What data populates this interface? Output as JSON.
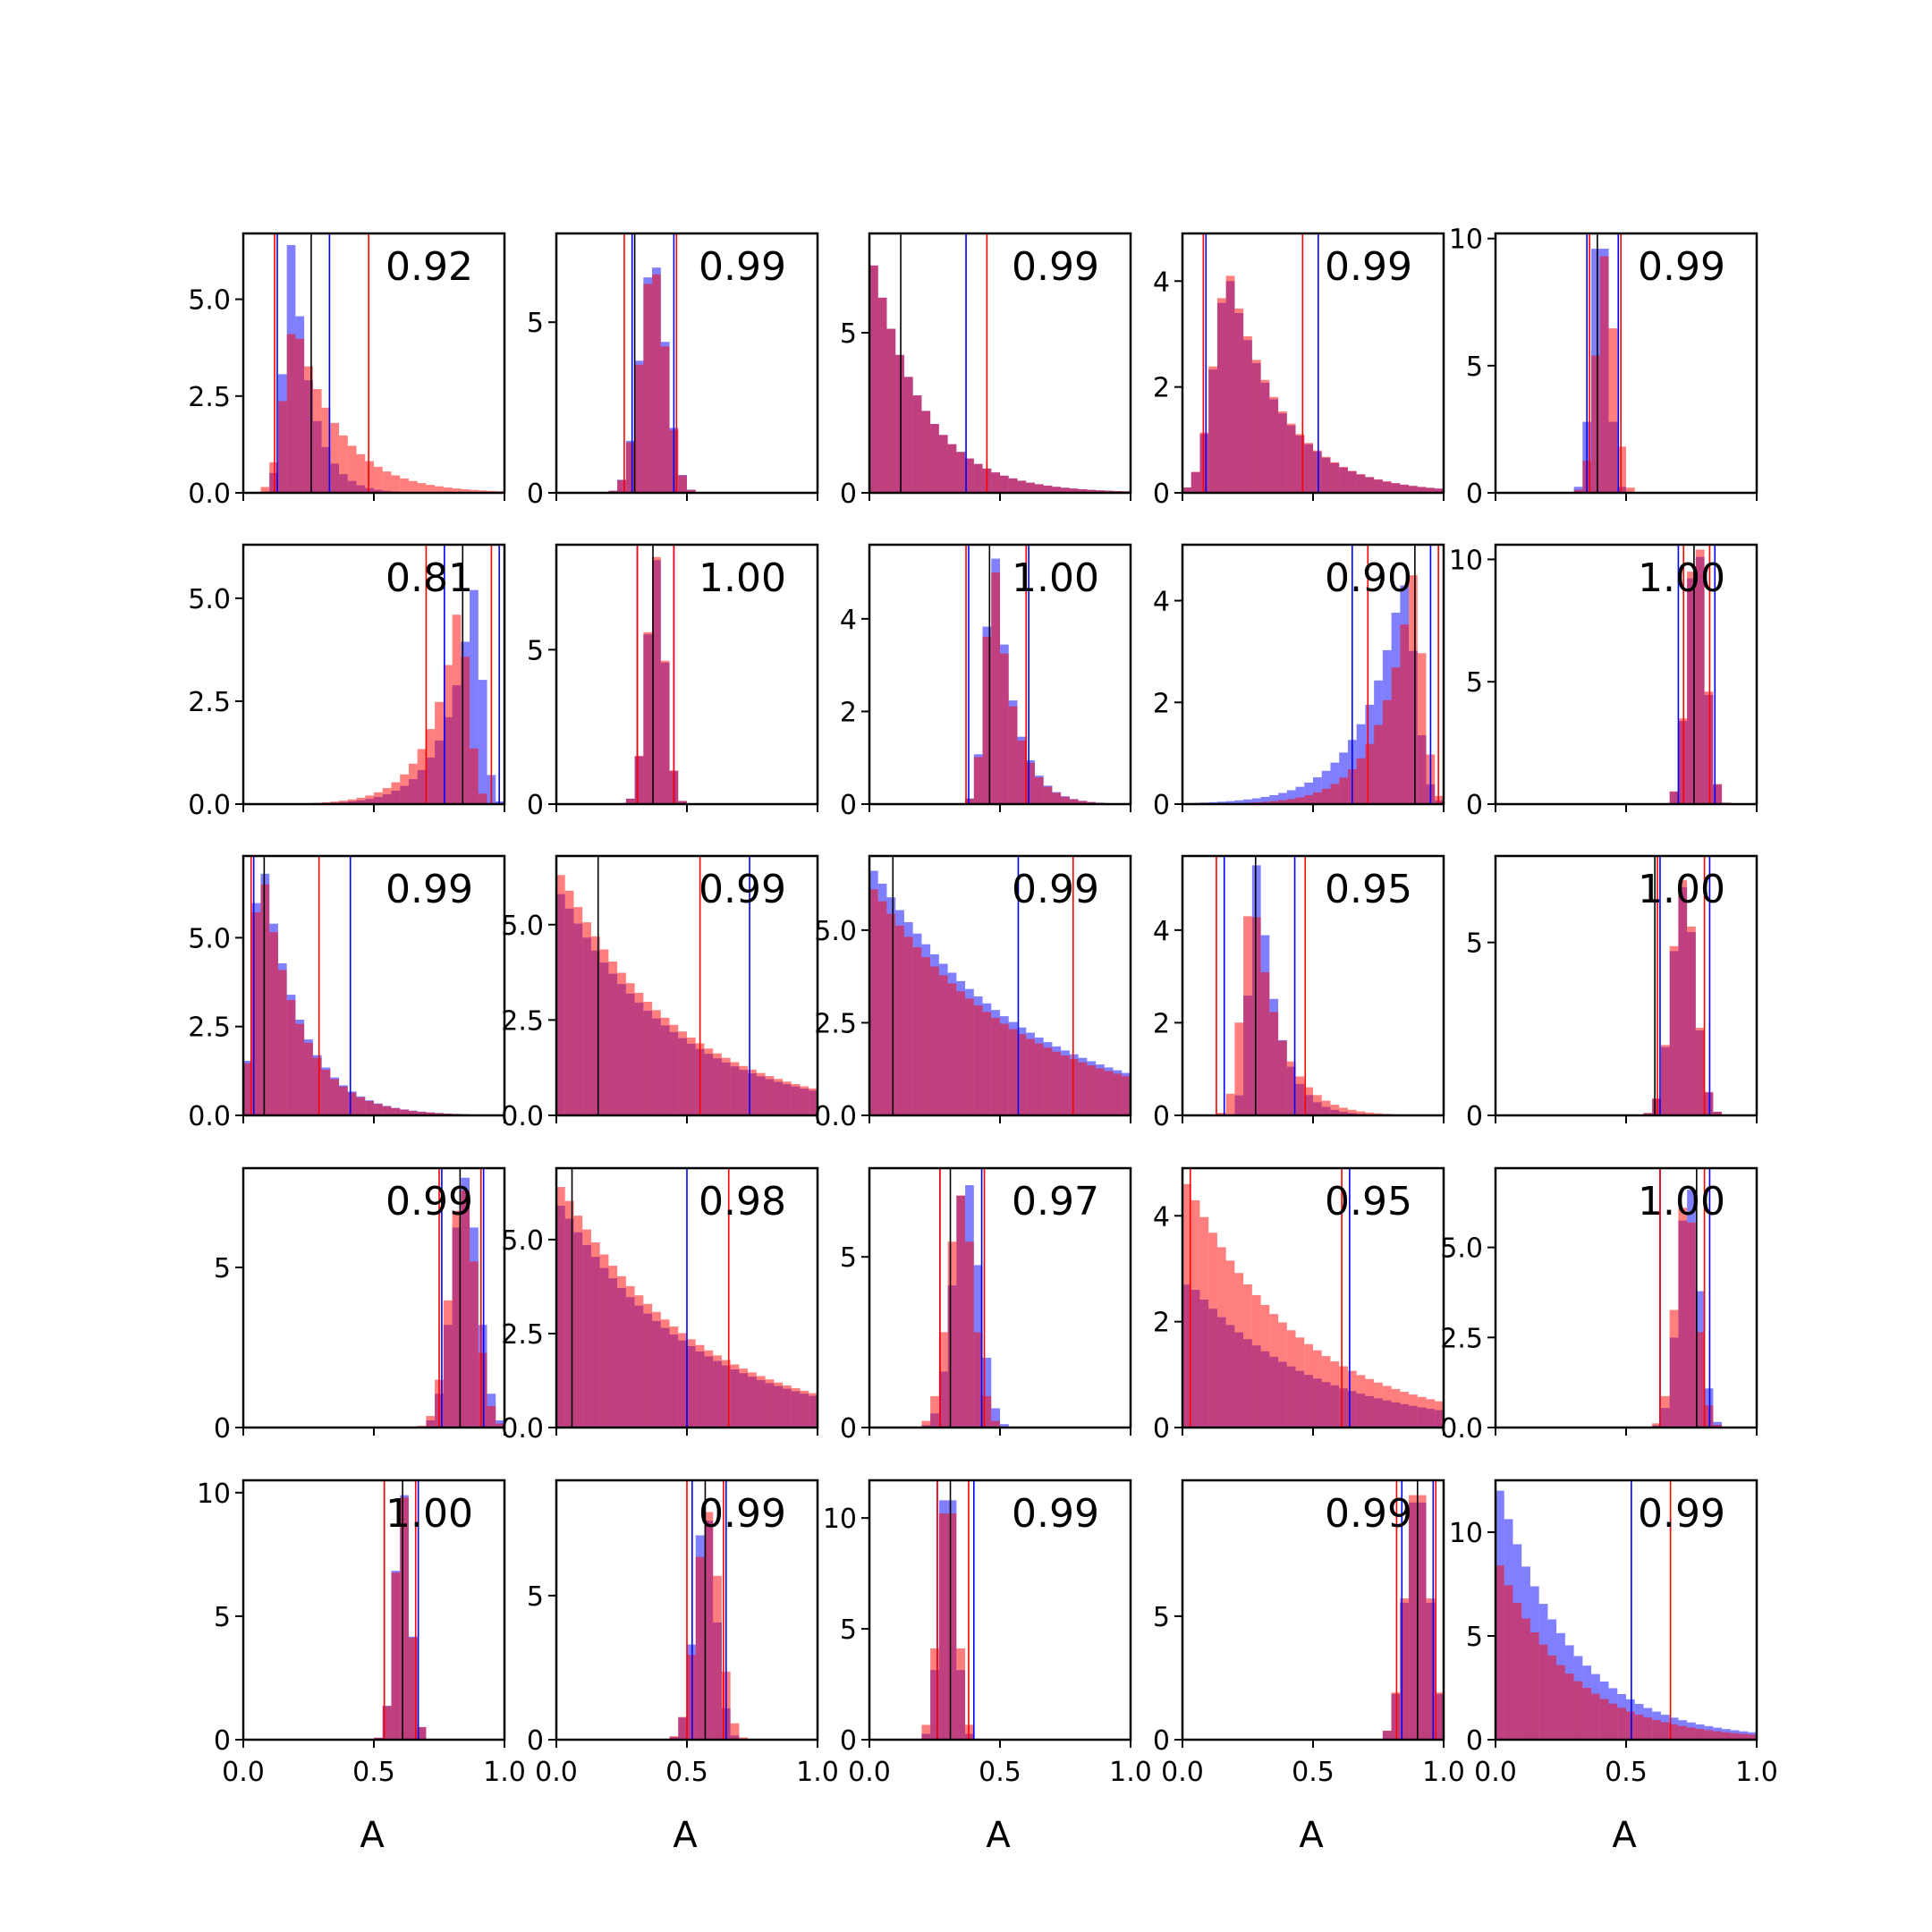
{
  "colors": {
    "series_a": "#0000ff",
    "series_b": "#ff0000",
    "median": "#000000",
    "frame": "#000000"
  },
  "chart_data": {
    "type": "grid-of-histograms",
    "rows": 5,
    "cols": 5,
    "xlim": [
      0,
      1
    ],
    "x_ticks": [
      "0.0",
      "0.5",
      "1.0"
    ],
    "xlabel": "A",
    "series": [
      {
        "color": "#0000ff",
        "alpha": 0.5
      },
      {
        "color": "#ff0000",
        "alpha": 0.5
      }
    ],
    "panels": [
      {
        "row": 0,
        "col": 0,
        "label": "0.92",
        "ymax": 6.7,
        "yticks": [
          "0.0",
          "2.5",
          "5.0"
        ],
        "yvals": [
          0,
          2.5,
          5
        ],
        "blue": {
          "mean": 0.19,
          "sd": 0.065,
          "skew": 0.4,
          "peak": 6.4
        },
        "red": {
          "mean": 0.2,
          "sd": 0.09,
          "skew": 2.5,
          "peak": 4.1
        },
        "vlines": {
          "blue": [
            0.13,
            0.33
          ],
          "red": [
            0.12,
            0.48
          ],
          "black": [
            0.26
          ]
        }
      },
      {
        "row": 0,
        "col": 1,
        "label": "0.99",
        "ymax": 7.6,
        "yticks": [
          "0",
          "5"
        ],
        "yvals": [
          0,
          5
        ],
        "blue": {
          "mean": 0.37,
          "sd": 0.05,
          "skew": 0,
          "peak": 6.6
        },
        "red": {
          "mean": 0.37,
          "sd": 0.05,
          "skew": 0,
          "peak": 6.4
        },
        "vlines": {
          "blue": [
            0.29,
            0.45
          ],
          "red": [
            0.26,
            0.46
          ],
          "black": [
            0.3
          ]
        }
      },
      {
        "row": 0,
        "col": 2,
        "label": "0.99",
        "ymax": 8.1,
        "yticks": [
          "0",
          "5"
        ],
        "yvals": [
          0,
          5
        ],
        "blue": {
          "mean": 0.02,
          "sd": 0.08,
          "skew": 4,
          "peak": 7.1
        },
        "red": {
          "mean": 0.02,
          "sd": 0.08,
          "skew": 4,
          "peak": 7.1
        },
        "vlines": {
          "blue": [
            0.37
          ],
          "red": [
            0.45
          ],
          "black": [
            0.12
          ]
        }
      },
      {
        "row": 0,
        "col": 3,
        "label": "0.99",
        "ymax": 4.9,
        "yticks": [
          "0",
          "2",
          "4"
        ],
        "yvals": [
          0,
          2,
          4
        ],
        "blue": {
          "mean": 0.18,
          "sd": 0.12,
          "skew": 2,
          "peak": 4.0
        },
        "red": {
          "mean": 0.18,
          "sd": 0.12,
          "skew": 2,
          "peak": 4.1
        },
        "vlines": {
          "blue": [
            0.09,
            0.52
          ],
          "red": [
            0.08,
            0.46
          ],
          "black": []
        }
      },
      {
        "row": 0,
        "col": 4,
        "label": "0.99",
        "ymax": 10.2,
        "yticks": [
          "0",
          "5",
          "10"
        ],
        "yvals": [
          0,
          5,
          10
        ],
        "blue": {
          "mean": 0.4,
          "sd": 0.03,
          "skew": 0,
          "peak": 9.6
        },
        "red": {
          "mean": 0.42,
          "sd": 0.035,
          "skew": 0,
          "peak": 9.3
        },
        "vlines": {
          "blue": [
            0.35,
            0.47
          ],
          "red": [
            0.36,
            0.48
          ],
          "black": [
            0.39
          ]
        }
      },
      {
        "row": 1,
        "col": 0,
        "label": "0.81",
        "ymax": 6.3,
        "yticks": [
          "0.0",
          "2.5",
          "5.0"
        ],
        "yvals": [
          0,
          2.5,
          5
        ],
        "blue": {
          "mean": 0.88,
          "sd": 0.07,
          "skew": -1.5,
          "peak": 5.2
        },
        "red": {
          "mean": 0.82,
          "sd": 0.08,
          "skew": -1,
          "peak": 4.6
        },
        "vlines": {
          "blue": [
            0.77,
            0.98
          ],
          "red": [
            0.7,
            0.95
          ],
          "black": [
            0.84
          ]
        }
      },
      {
        "row": 1,
        "col": 1,
        "label": "1.00",
        "ymax": 8.4,
        "yticks": [
          "0",
          "5"
        ],
        "yvals": [
          0,
          5
        ],
        "blue": {
          "mean": 0.38,
          "sd": 0.035,
          "skew": 0,
          "peak": 7.9
        },
        "red": {
          "mean": 0.38,
          "sd": 0.035,
          "skew": 0,
          "peak": 8.0
        },
        "vlines": {
          "blue": [
            0.31,
            0.45
          ],
          "red": [
            0.31,
            0.45
          ],
          "black": [
            0.37
          ]
        }
      },
      {
        "row": 1,
        "col": 2,
        "label": "1.00",
        "ymax": 5.6,
        "yticks": [
          "0",
          "2",
          "4"
        ],
        "yvals": [
          0,
          2,
          4
        ],
        "blue": {
          "mean": 0.48,
          "sd": 0.07,
          "skew": 0.3,
          "peak": 5.3
        },
        "red": {
          "mean": 0.48,
          "sd": 0.07,
          "skew": 0.3,
          "peak": 5.0
        },
        "vlines": {
          "blue": [
            0.38,
            0.61
          ],
          "red": [
            0.37,
            0.6
          ],
          "black": [
            0.46
          ]
        }
      },
      {
        "row": 1,
        "col": 3,
        "label": "0.90",
        "ymax": 5.1,
        "yticks": [
          "0",
          "2",
          "4"
        ],
        "yvals": [
          0,
          2,
          4
        ],
        "blue": {
          "mean": 0.84,
          "sd": 0.1,
          "skew": -1.5,
          "peak": 4.3
        },
        "red": {
          "mean": 0.88,
          "sd": 0.08,
          "skew": -1.5,
          "peak": 4.5
        },
        "vlines": {
          "blue": [
            0.65,
            0.95
          ],
          "red": [
            0.71,
            0.98
          ],
          "black": [
            0.89
          ]
        }
      },
      {
        "row": 1,
        "col": 4,
        "label": "1.00",
        "ymax": 10.6,
        "yticks": [
          "0",
          "5",
          "10"
        ],
        "yvals": [
          0,
          5,
          10
        ],
        "blue": {
          "mean": 0.77,
          "sd": 0.035,
          "skew": 0,
          "peak": 10.1
        },
        "red": {
          "mean": 0.77,
          "sd": 0.035,
          "skew": 0,
          "peak": 10.4
        },
        "vlines": {
          "blue": [
            0.7,
            0.84
          ],
          "red": [
            0.72,
            0.82
          ],
          "black": [
            0.76
          ]
        }
      },
      {
        "row": 2,
        "col": 0,
        "label": "0.99",
        "ymax": 7.3,
        "yticks": [
          "0.0",
          "2.5",
          "5.0"
        ],
        "yvals": [
          0,
          2.5,
          5
        ],
        "blue": {
          "mean": 0.07,
          "sd": 0.06,
          "skew": 4,
          "peak": 6.8
        },
        "red": {
          "mean": 0.07,
          "sd": 0.06,
          "skew": 4,
          "peak": 6.5
        },
        "vlines": {
          "blue": [
            0.04,
            0.41
          ],
          "red": [
            0.03,
            0.29
          ],
          "black": [
            0.08
          ]
        }
      },
      {
        "row": 2,
        "col": 1,
        "label": "0.99",
        "ymax": 6.8,
        "yticks": [
          "0.0",
          "2.5",
          "5.0"
        ],
        "yvals": [
          0,
          2.5,
          5
        ],
        "blue": {
          "mean": 0.02,
          "sd": 0.16,
          "skew": 5,
          "peak": 5.8
        },
        "red": {
          "mean": 0.02,
          "sd": 0.16,
          "skew": 5,
          "peak": 6.3
        },
        "vlines": {
          "blue": [
            0.74
          ],
          "red": [
            0.55
          ],
          "black": [
            0.16
          ]
        }
      },
      {
        "row": 2,
        "col": 2,
        "label": "0.99",
        "ymax": 7.0,
        "yticks": [
          "0.0",
          "2.5",
          "5.0"
        ],
        "yvals": [
          0,
          2.5,
          5
        ],
        "blue": {
          "mean": 0.02,
          "sd": 0.2,
          "skew": 5,
          "peak": 6.6
        },
        "red": {
          "mean": 0.02,
          "sd": 0.2,
          "skew": 5,
          "peak": 6.1
        },
        "vlines": {
          "blue": [
            0.57
          ],
          "red": [
            0.78
          ],
          "black": [
            0.09
          ]
        }
      },
      {
        "row": 2,
        "col": 3,
        "label": "0.95",
        "ymax": 5.6,
        "yticks": [
          "0",
          "2",
          "4"
        ],
        "yvals": [
          0,
          2,
          4
        ],
        "blue": {
          "mean": 0.29,
          "sd": 0.065,
          "skew": 0.5,
          "peak": 5.4
        },
        "red": {
          "mean": 0.27,
          "sd": 0.08,
          "skew": 0.8,
          "peak": 4.3
        },
        "vlines": {
          "blue": [
            0.16,
            0.43
          ],
          "red": [
            0.13,
            0.47
          ],
          "black": [
            0.28
          ]
        }
      },
      {
        "row": 2,
        "col": 4,
        "label": "1.00",
        "ymax": 7.5,
        "yticks": [
          "0",
          "5"
        ],
        "yvals": [
          0,
          5
        ],
        "blue": {
          "mean": 0.72,
          "sd": 0.045,
          "skew": 0,
          "peak": 6.6
        },
        "red": {
          "mean": 0.72,
          "sd": 0.045,
          "skew": 0,
          "peak": 6.8
        },
        "vlines": {
          "blue": [
            0.63,
            0.82
          ],
          "red": [
            0.62,
            0.8
          ],
          "black": [
            0.61
          ]
        }
      },
      {
        "row": 3,
        "col": 0,
        "label": "0.99",
        "ymax": 8.1,
        "yticks": [
          "0",
          "5"
        ],
        "yvals": [
          0,
          5
        ],
        "blue": {
          "mean": 0.85,
          "sd": 0.05,
          "skew": 0,
          "peak": 7.8
        },
        "red": {
          "mean": 0.84,
          "sd": 0.05,
          "skew": 0,
          "peak": 7.4
        },
        "vlines": {
          "blue": [
            0.76,
            0.92
          ],
          "red": [
            0.75,
            0.91
          ],
          "black": [
            0.83
          ]
        }
      },
      {
        "row": 3,
        "col": 1,
        "label": "0.98",
        "ymax": 6.9,
        "yticks": [
          "0.0",
          "2.5",
          "5.0"
        ],
        "yvals": [
          0,
          2.5,
          5
        ],
        "blue": {
          "mean": 0.02,
          "sd": 0.18,
          "skew": 5,
          "peak": 5.9
        },
        "red": {
          "mean": 0.02,
          "sd": 0.18,
          "skew": 5,
          "peak": 6.4
        },
        "vlines": {
          "blue": [
            0.5
          ],
          "red": [
            0.66
          ],
          "black": [
            0.06
          ]
        }
      },
      {
        "row": 3,
        "col": 2,
        "label": "0.97",
        "ymax": 7.6,
        "yticks": [
          "0",
          "5"
        ],
        "yvals": [
          0,
          5
        ],
        "blue": {
          "mean": 0.37,
          "sd": 0.05,
          "skew": 0,
          "peak": 7.1
        },
        "red": {
          "mean": 0.35,
          "sd": 0.05,
          "skew": 0,
          "peak": 6.8
        },
        "vlines": {
          "blue": [
            0.27,
            0.43
          ],
          "red": [
            0.27,
            0.44
          ],
          "black": [
            0.31
          ]
        }
      },
      {
        "row": 3,
        "col": 3,
        "label": "0.95",
        "ymax": 4.9,
        "yticks": [
          "0",
          "2",
          "4"
        ],
        "yvals": [
          0,
          2,
          4
        ],
        "blue": {
          "mean": 0.03,
          "sd": 0.22,
          "skew": 3,
          "peak": 2.7
        },
        "red": {
          "mean": 0.02,
          "sd": 0.18,
          "skew": 4,
          "peak": 4.6
        },
        "vlines": {
          "blue": [
            0.64
          ],
          "red": [
            0.03,
            0.61
          ],
          "black": []
        }
      },
      {
        "row": 3,
        "col": 4,
        "label": "1.00",
        "ymax": 7.2,
        "yticks": [
          "0.0",
          "2.5",
          "5.0"
        ],
        "yvals": [
          0,
          2.5,
          5
        ],
        "blue": {
          "mean": 0.74,
          "sd": 0.04,
          "skew": 0,
          "peak": 6.6
        },
        "red": {
          "mean": 0.73,
          "sd": 0.04,
          "skew": 0,
          "peak": 6.1
        },
        "vlines": {
          "blue": [
            0.63,
            0.82
          ],
          "red": [
            0.63,
            0.8
          ],
          "black": [
            0.77
          ]
        }
      },
      {
        "row": 4,
        "col": 0,
        "label": "1.00",
        "ymax": 10.5,
        "yticks": [
          "0",
          "5",
          "10"
        ],
        "yvals": [
          0,
          5,
          10
        ],
        "blue": {
          "mean": 0.61,
          "sd": 0.03,
          "skew": 0,
          "peak": 9.9
        },
        "red": {
          "mean": 0.61,
          "sd": 0.03,
          "skew": 0,
          "peak": 9.8
        },
        "vlines": {
          "blue": [
            0.54,
            0.67
          ],
          "red": [
            0.54,
            0.66
          ],
          "black": [
            0.61
          ]
        }
      },
      {
        "row": 4,
        "col": 1,
        "label": "0.99",
        "ymax": 9.0,
        "yticks": [
          "0",
          "5"
        ],
        "yvals": [
          0,
          5
        ],
        "blue": {
          "mean": 0.57,
          "sd": 0.04,
          "skew": 0,
          "peak": 7.6
        },
        "red": {
          "mean": 0.58,
          "sd": 0.045,
          "skew": 0,
          "peak": 7.9
        },
        "vlines": {
          "blue": [
            0.52,
            0.65
          ],
          "red": [
            0.5,
            0.64
          ],
          "black": [
            0.57
          ]
        }
      },
      {
        "row": 4,
        "col": 2,
        "label": "0.99",
        "ymax": 11.7,
        "yticks": [
          "0",
          "5",
          "10"
        ],
        "yvals": [
          0,
          5,
          10
        ],
        "blue": {
          "mean": 0.3,
          "sd": 0.03,
          "skew": 0,
          "peak": 10.8
        },
        "red": {
          "mean": 0.3,
          "sd": 0.035,
          "skew": 0,
          "peak": 10.2
        },
        "vlines": {
          "blue": [
            0.26,
            0.4
          ],
          "red": [
            0.26,
            0.38
          ],
          "black": [
            0.31
          ]
        }
      },
      {
        "row": 4,
        "col": 3,
        "label": "0.99",
        "ymax": 10.5,
        "yticks": [
          "0",
          "5"
        ],
        "yvals": [
          0,
          5
        ],
        "blue": {
          "mean": 0.9,
          "sd": 0.045,
          "skew": 0,
          "peak": 9.6
        },
        "red": {
          "mean": 0.9,
          "sd": 0.045,
          "skew": 0,
          "peak": 9.9
        },
        "vlines": {
          "blue": [
            0.84,
            0.96
          ],
          "red": [
            0.82,
            0.97
          ],
          "black": [
            0.9
          ]
        }
      },
      {
        "row": 4,
        "col": 4,
        "label": "0.99",
        "ymax": 12.5,
        "yticks": [
          "0",
          "5",
          "10"
        ],
        "yvals": [
          0,
          5,
          10
        ],
        "blue": {
          "mean": 0.01,
          "sd": 0.1,
          "skew": 5,
          "peak": 12.0
        },
        "red": {
          "mean": 0.01,
          "sd": 0.1,
          "skew": 5,
          "peak": 8.4
        },
        "vlines": {
          "blue": [
            0.52
          ],
          "red": [
            0.67
          ],
          "black": []
        }
      }
    ]
  }
}
